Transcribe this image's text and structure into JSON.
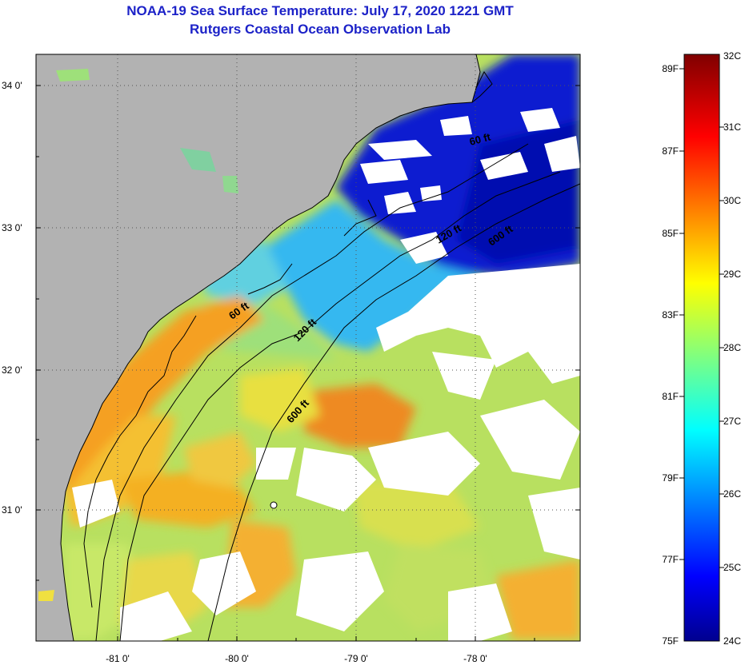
{
  "header": {
    "title": "NOAA-19 Sea Surface Temperature:  July 17, 2020 1221 GMT",
    "subtitle": "Rutgers Coastal Ocean Observation Lab"
  },
  "map": {
    "lat_labels": [
      "34 0'",
      "33 0'",
      "32 0'",
      "31 0'"
    ],
    "lon_labels": [
      "-81 0'",
      "-80 0'",
      "-79 0'",
      "-78 0'"
    ],
    "isobath_labels": [
      "60 ft",
      "120 ft",
      "600 ft",
      "60 ft",
      "120 ft",
      "600 ft"
    ],
    "colors": {
      "land": "#b2b2b2",
      "cloud": "#ffffff",
      "coast_line": "#000000"
    }
  },
  "colorbar": {
    "celsius_labels": [
      "32C",
      "31C",
      "30C",
      "29C",
      "28C",
      "27C",
      "26C",
      "25C",
      "24C"
    ],
    "fahrenheit_labels": [
      "89F",
      "87F",
      "85F",
      "83F",
      "81F",
      "79F",
      "77F",
      "75F"
    ],
    "colormap": "jet"
  }
}
